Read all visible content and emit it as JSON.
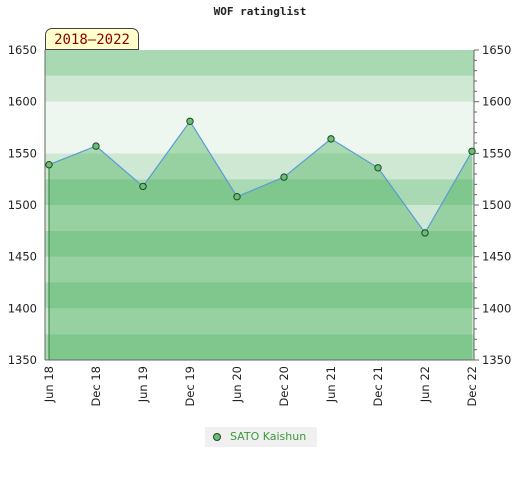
{
  "chart_data": {
    "type": "area",
    "title": "WOF ratinglist",
    "badge": "2018–2022",
    "categories": [
      "Jun 18",
      "Dec 18",
      "Jun 19",
      "Dec 19",
      "Jun 20",
      "Dec 20",
      "Jun 21",
      "Dec 21",
      "Jun 22",
      "Dec 22"
    ],
    "series": [
      {
        "name": "SATO Kaishun",
        "values": [
          1539,
          1557,
          1518,
          1581,
          1508,
          1527,
          1564,
          1536,
          1473,
          1552
        ]
      }
    ],
    "ylim": [
      1350,
      1650
    ],
    "yticks": [
      1350,
      1400,
      1450,
      1500,
      1550,
      1600,
      1650
    ],
    "grid": true,
    "legend_position": "bottom-center",
    "colors": {
      "line": "#5b9bd5",
      "marker": "#6dbd7a",
      "marker_edge": "#1c4a1c",
      "fill": "#3caa50",
      "band_light": "#eef7ef",
      "band_mid": "#cfe8d4",
      "band_dark": "#a9d9b2"
    }
  }
}
